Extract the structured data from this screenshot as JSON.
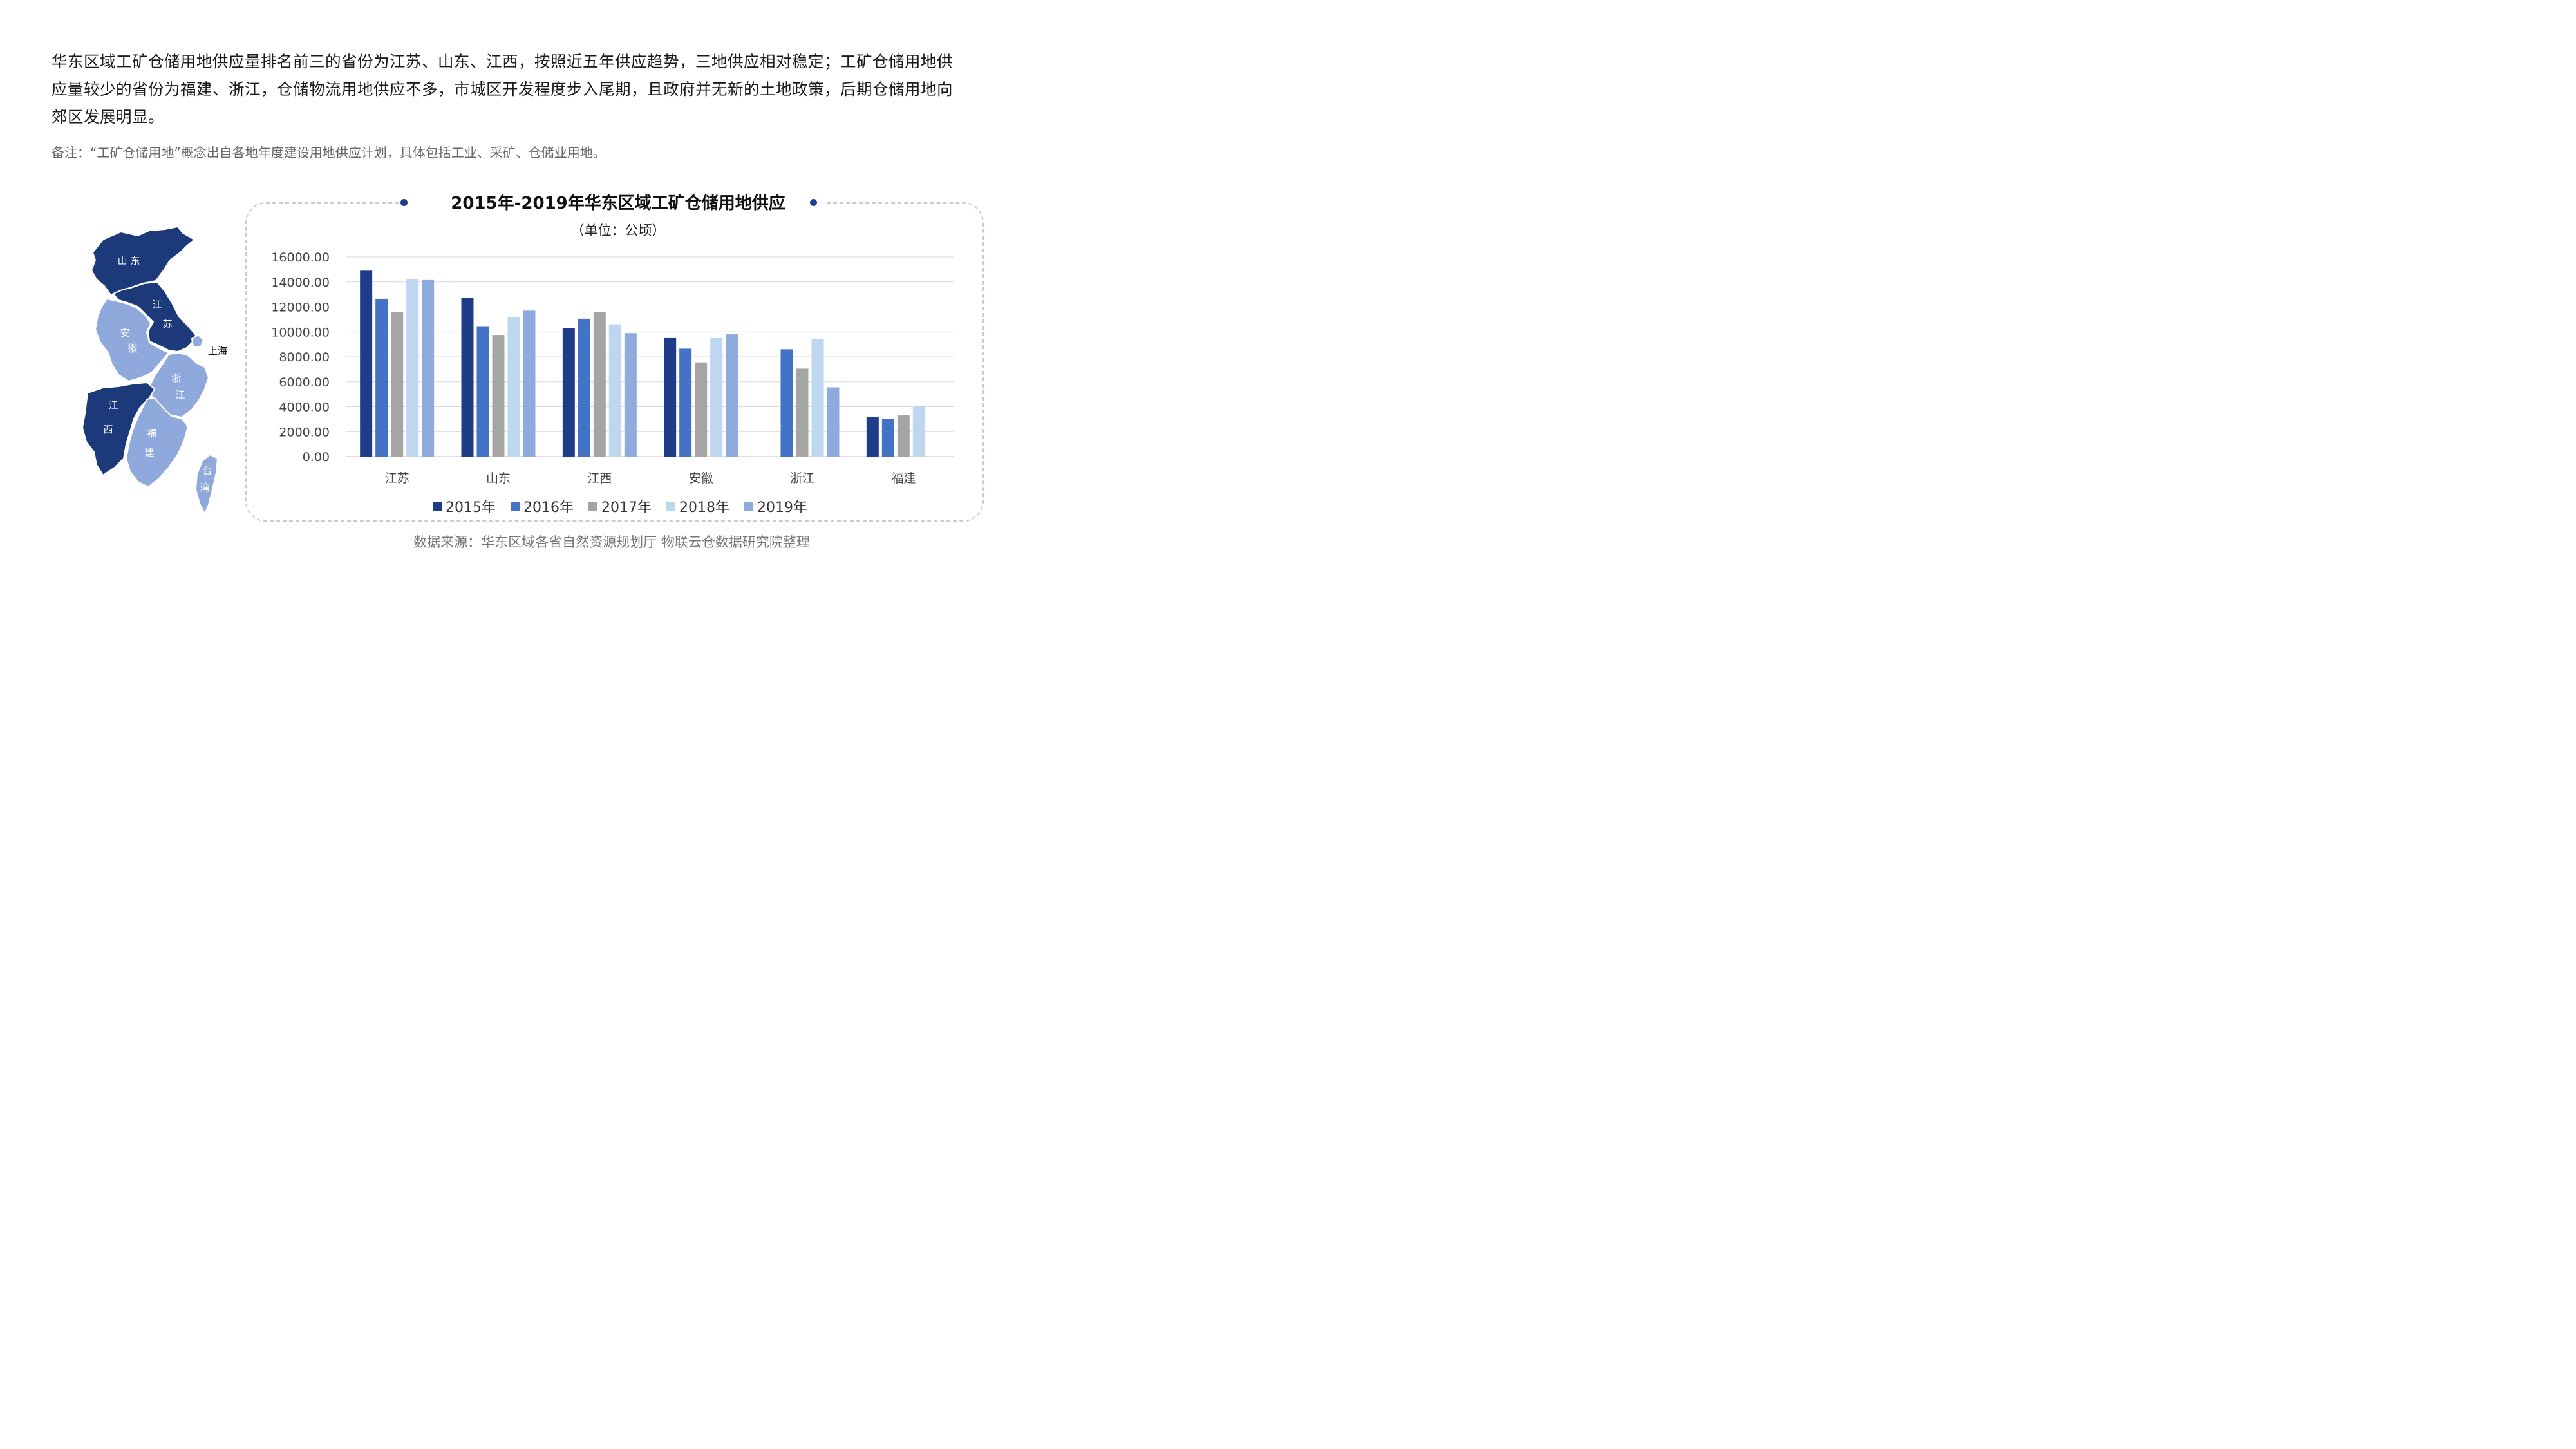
{
  "intro_text": "华东区域工矿仓储用地供应量排名前三的省份为江苏、山东、江西，按照近五年供应趋势，三地供应相对稳定；工矿仓储用地供应量较少的省份为福建、浙江，仓储物流用地供应不多，市城区开发程度步入尾期，且政府并无新的土地政策，后期仓储用地向郊区发展明显。",
  "note_text": "备注：“工矿仓储用地”概念出自各地年度建设用地供应计划，具体包括工业、采矿、仓储业用地。",
  "source_text": "数据来源：华东区域各省自然资源规划厅 物联云仓数据研究院整理",
  "map": {
    "labels": {
      "shandong": "山 东",
      "jiangsu_1": "江",
      "jiangsu_2": "苏",
      "anhui_1": "安",
      "anhui_2": "徽",
      "shanghai": "上海",
      "zhejiang_1": "浙",
      "zhejiang_2": "江",
      "jiangxi_1": "江",
      "jiangxi_2": "西",
      "fujian_1": "福",
      "fujian_2": "建",
      "taiwan_1": "台",
      "taiwan_2": "湾"
    },
    "colors": {
      "dark": "#1c3a7a",
      "light": "#8fa9dc"
    }
  },
  "chart_data": {
    "type": "bar",
    "title": "2015年-2019年华东区域工矿仓储用地供应",
    "subtitle": "（单位：公顷）",
    "categories": [
      "江苏",
      "山东",
      "江西",
      "安徽",
      "浙江",
      "福建"
    ],
    "ylim": [
      0,
      16000
    ],
    "yticks": [
      "0.00",
      "2000.00",
      "4000.00",
      "6000.00",
      "8000.00",
      "10000.00",
      "12000.00",
      "14000.00",
      "16000.00"
    ],
    "grid": true,
    "legend_position": "bottom",
    "series": [
      {
        "name": "2015年",
        "color": "#1f3c88",
        "values": [
          14900,
          12750,
          10300,
          9500,
          null,
          3200
        ]
      },
      {
        "name": "2016年",
        "color": "#4472c4",
        "values": [
          12650,
          10450,
          11050,
          8650,
          8600,
          3000
        ]
      },
      {
        "name": "2017年",
        "color": "#a5a5a5",
        "values": [
          11600,
          9750,
          11600,
          7550,
          7050,
          3300
        ]
      },
      {
        "name": "2018年",
        "color": "#bdd7ee",
        "values": [
          14200,
          11200,
          10600,
          9500,
          9450,
          4000
        ]
      },
      {
        "name": "2019年",
        "color": "#8faadc",
        "values": [
          14150,
          11700,
          9900,
          9800,
          5550,
          null
        ]
      }
    ]
  }
}
